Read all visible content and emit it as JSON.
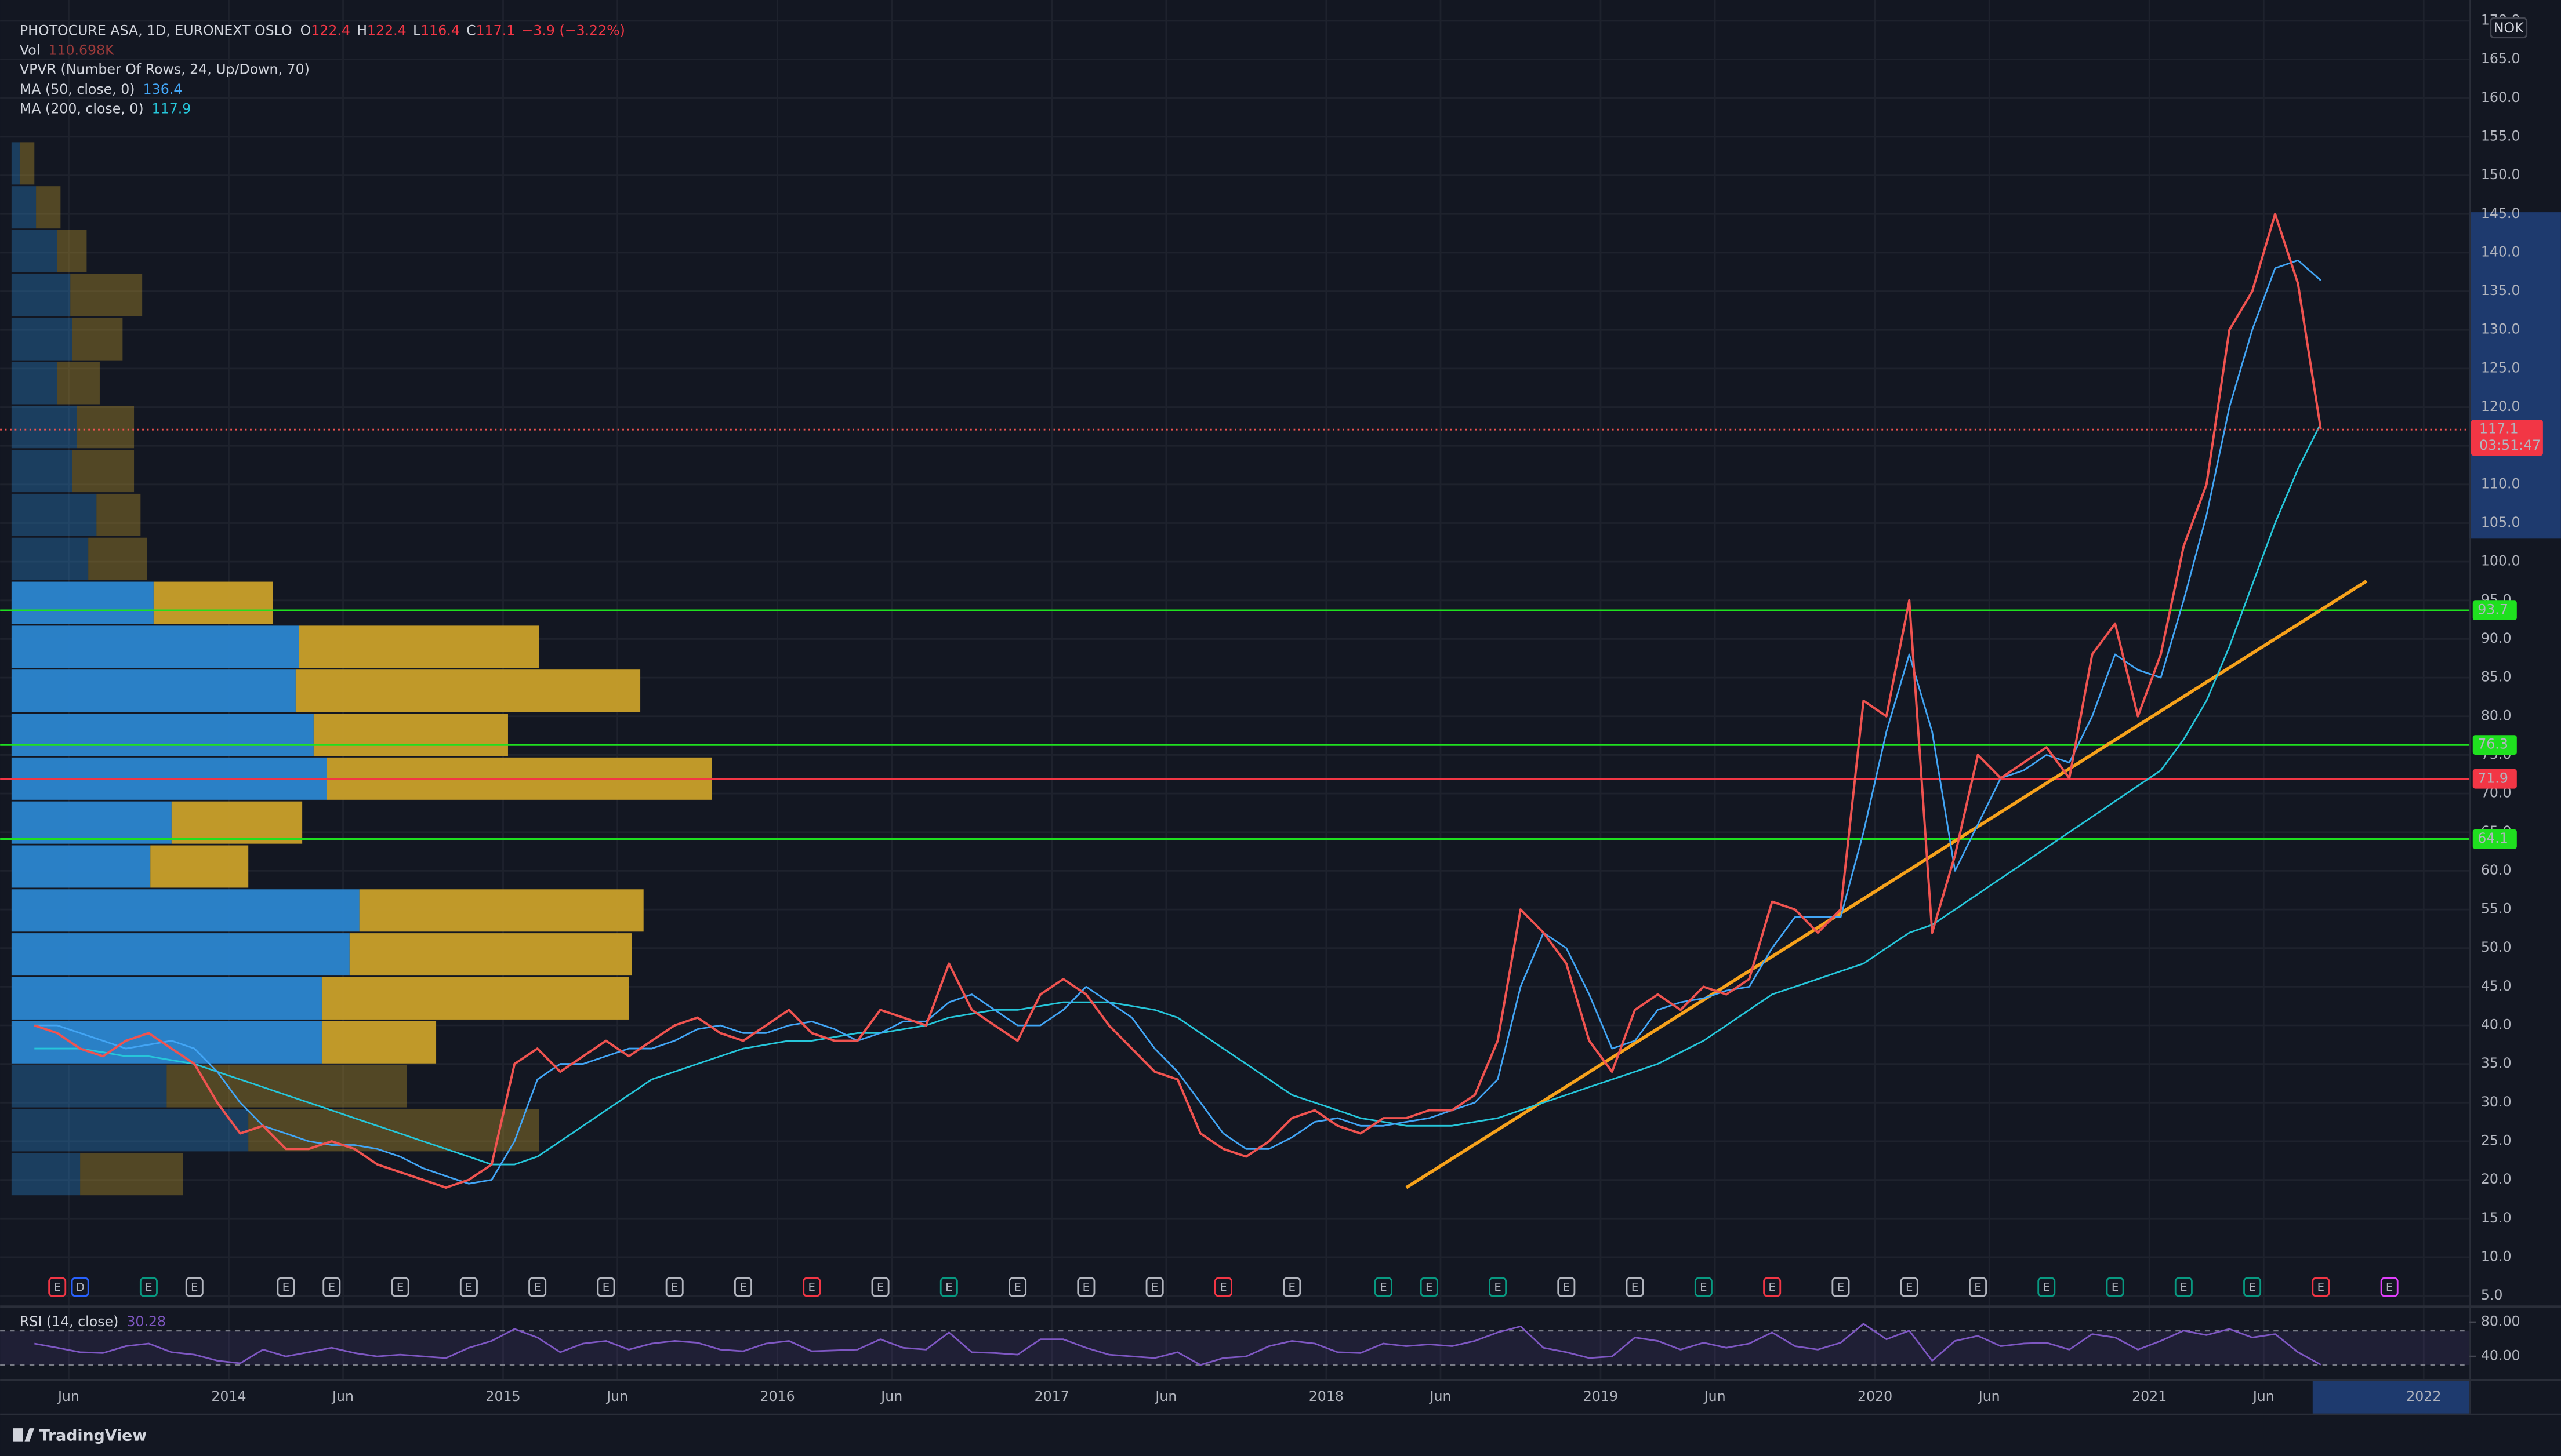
{
  "header": {
    "open_label": "O",
    "open": 122.4,
    "high_label": "H",
    "high": 122.4,
    "low_label": "L",
    "low": 116.4,
    "close_label": "C",
    "change": "−3.9 (−3.22%)",
    "vol_label": "Vol",
    "vol": "110.698K",
    "countdown": "03:51:47",
    "currency": "NOK",
    "brand": "TradingView"
  },
  "chart_data": {
    "type": "line",
    "x": [
      "2013-04",
      "2013-05",
      "2013-06",
      "2013-07",
      "2013-08",
      "2013-09",
      "2013-10",
      "2013-11",
      "2013-12",
      "2014-01",
      "2014-02",
      "2014-03",
      "2014-04",
      "2014-05",
      "2014-06",
      "2014-07",
      "2014-08",
      "2014-09",
      "2014-10",
      "2014-11",
      "2014-12",
      "2015-01",
      "2015-02",
      "2015-03",
      "2015-04",
      "2015-05",
      "2015-06",
      "2015-07",
      "2015-08",
      "2015-09",
      "2015-10",
      "2015-11",
      "2015-12",
      "2016-01",
      "2016-02",
      "2016-03",
      "2016-04",
      "2016-05",
      "2016-06",
      "2016-07",
      "2016-08",
      "2016-09",
      "2016-10",
      "2016-11",
      "2016-12",
      "2017-01",
      "2017-02",
      "2017-03",
      "2017-04",
      "2017-05",
      "2017-06",
      "2017-07",
      "2017-08",
      "2017-09",
      "2017-10",
      "2017-11",
      "2017-12",
      "2018-01",
      "2018-02",
      "2018-03",
      "2018-04",
      "2018-05",
      "2018-06",
      "2018-07",
      "2018-08",
      "2018-09",
      "2018-10",
      "2018-11",
      "2018-12",
      "2019-01",
      "2019-02",
      "2019-03",
      "2019-04",
      "2019-05",
      "2019-06",
      "2019-07",
      "2019-08",
      "2019-09",
      "2019-10",
      "2019-11",
      "2019-12",
      "2020-01",
      "2020-02",
      "2020-03",
      "2020-04",
      "2020-05",
      "2020-06",
      "2020-07",
      "2020-08",
      "2020-09",
      "2020-10",
      "2020-11",
      "2020-12",
      "2021-01",
      "2021-02",
      "2021-03",
      "2021-04",
      "2021-05",
      "2021-06",
      "2021-07",
      "2021-08"
    ],
    "series": [
      {
        "name": "PHOTOCURE ASA, 1D, EURONEXT OSLO",
        "color": "#ef5350",
        "values": [
          40,
          39,
          37,
          36,
          38,
          39,
          37,
          35,
          30,
          26,
          27,
          24,
          24,
          25,
          24,
          22,
          21,
          20,
          19,
          20,
          22,
          35,
          37,
          34,
          36,
          38,
          36,
          38,
          40,
          41,
          39,
          38,
          40,
          42,
          39,
          38,
          38,
          42,
          41,
          40,
          48,
          42,
          40,
          38,
          44,
          46,
          44,
          40,
          37,
          34,
          33,
          26,
          24,
          23,
          25,
          28,
          29,
          27,
          26,
          28,
          28,
          29,
          29,
          31,
          38,
          55,
          52,
          48,
          38,
          34,
          42,
          44,
          42,
          45,
          44,
          46,
          56,
          55,
          52,
          55,
          82,
          80,
          95,
          52,
          62,
          75,
          72,
          74,
          76,
          72,
          88,
          92,
          80,
          88,
          102,
          110,
          130,
          135,
          145,
          136,
          117.1
        ]
      },
      {
        "name": "MA (50, close, 0)",
        "color": "#42a5f5",
        "values": [
          40,
          40,
          39,
          38,
          37,
          37.5,
          38,
          37,
          34,
          30,
          27,
          26,
          25,
          24.5,
          24.5,
          24,
          23,
          21.5,
          20.5,
          19.5,
          20,
          25,
          33,
          35,
          35,
          36,
          37,
          37,
          38,
          39.5,
          40,
          39,
          39,
          40,
          40.5,
          39.5,
          38,
          39,
          40.5,
          40.5,
          43,
          44,
          42,
          40,
          40,
          42,
          45,
          43,
          41,
          37,
          34,
          30,
          26,
          24,
          24,
          25.5,
          27.5,
          28,
          27,
          27,
          27.5,
          28,
          29,
          30,
          33,
          45,
          52,
          50,
          44,
          37,
          38,
          42,
          43,
          43.5,
          44.5,
          45,
          50,
          54,
          54,
          54,
          65,
          78,
          88,
          78,
          60,
          66,
          72,
          73,
          75,
          74,
          80,
          88,
          86,
          85,
          95,
          106,
          120,
          130,
          138,
          139,
          136.4
        ]
      },
      {
        "name": "MA (200, close, 0)",
        "color": "#26c6da",
        "values": [
          37,
          37,
          37,
          36.5,
          36,
          36,
          35.5,
          35,
          34,
          33,
          32,
          31,
          30,
          29,
          28,
          27,
          26,
          25,
          24,
          23,
          22,
          22,
          23,
          25,
          27,
          29,
          31,
          33,
          34,
          35,
          36,
          37,
          37.5,
          38,
          38,
          38.5,
          39,
          39,
          39.5,
          40,
          41,
          41.5,
          42,
          42,
          42.5,
          43,
          43,
          43,
          42.5,
          42,
          41,
          39,
          37,
          35,
          33,
          31,
          30,
          29,
          28,
          27.5,
          27,
          27,
          27,
          27.5,
          28,
          29,
          30,
          31,
          32,
          33,
          34,
          35,
          36.5,
          38,
          40,
          42,
          44,
          45,
          46,
          47,
          48,
          50,
          52,
          53,
          55,
          57,
          59,
          61,
          63,
          65,
          67,
          69,
          71,
          73,
          77,
          82,
          89,
          97,
          105,
          112,
          117.9
        ]
      },
      {
        "name": "RSI (14, close)",
        "color": "#7e57c2",
        "axis": "rsi",
        "values": [
          55,
          50,
          45,
          44,
          52,
          55,
          45,
          42,
          35,
          32,
          48,
          40,
          45,
          50,
          44,
          40,
          42,
          40,
          38,
          50,
          58,
          72,
          62,
          45,
          55,
          58,
          48,
          55,
          58,
          56,
          48,
          46,
          55,
          58,
          46,
          47,
          48,
          60,
          50,
          48,
          68,
          45,
          44,
          42,
          60,
          60,
          50,
          42,
          40,
          38,
          45,
          30,
          38,
          40,
          52,
          58,
          55,
          45,
          44,
          55,
          52,
          54,
          52,
          58,
          68,
          75,
          50,
          45,
          38,
          40,
          62,
          58,
          48,
          56,
          50,
          55,
          68,
          52,
          48,
          56,
          78,
          60,
          70,
          35,
          58,
          64,
          52,
          55,
          56,
          48,
          66,
          62,
          48,
          58,
          70,
          65,
          72,
          62,
          66,
          45,
          30.28
        ]
      }
    ],
    "xlim": [
      "2013-03",
      "2022-03"
    ],
    "xticks": [
      {
        "value": "2013-06",
        "label": "Jun"
      },
      {
        "value": "2014-01",
        "label": "2014"
      },
      {
        "value": "2014-06",
        "label": "Jun"
      },
      {
        "value": "2015-01",
        "label": "2015"
      },
      {
        "value": "2015-06",
        "label": "Jun"
      },
      {
        "value": "2016-01",
        "label": "2016"
      },
      {
        "value": "2016-06",
        "label": "Jun"
      },
      {
        "value": "2017-01",
        "label": "2017"
      },
      {
        "value": "2017-06",
        "label": "Jun"
      },
      {
        "value": "2018-01",
        "label": "2018"
      },
      {
        "value": "2018-06",
        "label": "Jun"
      },
      {
        "value": "2019-01",
        "label": "2019"
      },
      {
        "value": "2019-06",
        "label": "Jun"
      },
      {
        "value": "2020-01",
        "label": "2020"
      },
      {
        "value": "2020-06",
        "label": "Jun"
      },
      {
        "value": "2021-01",
        "label": "2021"
      },
      {
        "value": "2021-06",
        "label": "Jun"
      },
      {
        "value": "2022-01",
        "label": "2022"
      }
    ],
    "ylim": [
      3.7,
      172.7
    ],
    "yticks": [
      {
        "value": 5,
        "label": "5.0"
      },
      {
        "value": 10,
        "label": "10.0"
      },
      {
        "value": 15,
        "label": "15.0"
      },
      {
        "value": 20,
        "label": "20.0"
      },
      {
        "value": 25,
        "label": "25.0"
      },
      {
        "value": 30,
        "label": "30.0"
      },
      {
        "value": 35,
        "label": "35.0"
      },
      {
        "value": 40,
        "label": "40.0"
      },
      {
        "value": 45,
        "label": "45.0"
      },
      {
        "value": 50,
        "label": "50.0"
      },
      {
        "value": 55,
        "label": "55.0"
      },
      {
        "value": 60,
        "label": "60.0"
      },
      {
        "value": 65,
        "label": "65.0"
      },
      {
        "value": 70,
        "label": "70.0"
      },
      {
        "value": 75,
        "label": "75.0"
      },
      {
        "value": 80,
        "label": "80.0"
      },
      {
        "value": 85,
        "label": "85.0"
      },
      {
        "value": 90,
        "label": "90.0"
      },
      {
        "value": 95,
        "label": "95.0"
      },
      {
        "value": 100,
        "label": "100.0"
      },
      {
        "value": 105,
        "label": "105.0"
      },
      {
        "value": 110,
        "label": "110.0"
      },
      {
        "value": 115,
        "label": "115.0"
      },
      {
        "value": 120,
        "label": "120.0"
      },
      {
        "value": 125,
        "label": "125.0"
      },
      {
        "value": 130,
        "label": "130.0"
      },
      {
        "value": 135,
        "label": "135.0"
      },
      {
        "value": 140,
        "label": "140.0"
      },
      {
        "value": 145,
        "label": "145.0"
      },
      {
        "value": 150,
        "label": "150.0"
      },
      {
        "value": 155,
        "label": "155.0"
      },
      {
        "value": 160,
        "label": "160.0"
      },
      {
        "value": 165,
        "label": "165.0"
      },
      {
        "value": 170,
        "label": "170.0"
      }
    ],
    "grid": true,
    "rsi_ylim": [
      13.3,
      99
    ],
    "rsi_yticks": [
      {
        "value": 80,
        "label": "80.00"
      },
      {
        "value": 40,
        "label": "40.00"
      }
    ],
    "rsi_bands": [
      70,
      30
    ],
    "levels": [
      {
        "value": 93.7,
        "color": "#1fe01f"
      },
      {
        "value": 76.3,
        "color": "#1fe01f"
      },
      {
        "value": 71.9,
        "color": "#f23645"
      },
      {
        "value": 64.1,
        "color": "#1fe01f"
      }
    ],
    "trendline": {
      "color": "#f7a21b",
      "x": [
        "2018-04",
        "2021-10"
      ],
      "values": [
        19,
        97.5
      ]
    },
    "vpvr": {
      "name": "VPVR (Number Of Rows, 24, Up/Down, 70)",
      "range": [
        17.9,
        154.4
      ],
      "value_area_percent": 70,
      "up_color": "#2b86d0",
      "down_color": "#c9a02a",
      "up": [
        5,
        15,
        28,
        36,
        37,
        28,
        40,
        37,
        52,
        47,
        87,
        176,
        174,
        185,
        193,
        98,
        85,
        213,
        207,
        190,
        190,
        95,
        145,
        42
      ],
      "down": [
        9,
        15,
        18,
        44,
        31,
        26,
        35,
        38,
        27,
        36,
        73,
        147,
        211,
        119,
        236,
        80,
        60,
        174,
        173,
        188,
        70,
        147,
        178,
        63
      ]
    },
    "events": [
      {
        "label": "E",
        "x": "2013-05",
        "color": "#f23645"
      },
      {
        "label": "D",
        "x": "2013-06",
        "color": "#2962ff"
      },
      {
        "label": "E",
        "x": "2013-09",
        "color": "#089981"
      },
      {
        "label": "E",
        "x": "2013-11",
        "color": "#b2b5be"
      },
      {
        "label": "E",
        "x": "2014-03",
        "color": "#b2b5be"
      },
      {
        "label": "E",
        "x": "2014-05",
        "color": "#b2b5be"
      },
      {
        "label": "E",
        "x": "2014-08",
        "color": "#b2b5be"
      },
      {
        "label": "E",
        "x": "2014-11",
        "color": "#b2b5be"
      },
      {
        "label": "E",
        "x": "2015-02",
        "color": "#b2b5be"
      },
      {
        "label": "E",
        "x": "2015-05",
        "color": "#b2b5be"
      },
      {
        "label": "E",
        "x": "2015-08",
        "color": "#b2b5be"
      },
      {
        "label": "E",
        "x": "2015-11",
        "color": "#b2b5be"
      },
      {
        "label": "E",
        "x": "2016-02",
        "color": "#f23645"
      },
      {
        "label": "E",
        "x": "2016-05",
        "color": "#b2b5be"
      },
      {
        "label": "E",
        "x": "2016-08",
        "color": "#089981"
      },
      {
        "label": "E",
        "x": "2016-11",
        "color": "#b2b5be"
      },
      {
        "label": "E",
        "x": "2017-02",
        "color": "#b2b5be"
      },
      {
        "label": "E",
        "x": "2017-05",
        "color": "#b2b5be"
      },
      {
        "label": "E",
        "x": "2017-08",
        "color": "#f23645"
      },
      {
        "label": "E",
        "x": "2017-11",
        "color": "#b2b5be"
      },
      {
        "label": "E",
        "x": "2018-03",
        "color": "#089981"
      },
      {
        "label": "E",
        "x": "2018-05",
        "color": "#089981"
      },
      {
        "label": "E",
        "x": "2018-08",
        "color": "#089981"
      },
      {
        "label": "E",
        "x": "2018-11",
        "color": "#b2b5be"
      },
      {
        "label": "E",
        "x": "2019-02",
        "color": "#b2b5be"
      },
      {
        "label": "E",
        "x": "2019-05",
        "color": "#089981"
      },
      {
        "label": "E",
        "x": "2019-08",
        "color": "#f23645"
      },
      {
        "label": "E",
        "x": "2019-11",
        "color": "#b2b5be"
      },
      {
        "label": "E",
        "x": "2020-02",
        "color": "#b2b5be"
      },
      {
        "label": "E",
        "x": "2020-05",
        "color": "#b2b5be"
      },
      {
        "label": "E",
        "x": "2020-08",
        "color": "#089981"
      },
      {
        "label": "E",
        "x": "2020-11",
        "color": "#089981"
      },
      {
        "label": "E",
        "x": "2021-02",
        "color": "#089981"
      },
      {
        "label": "E",
        "x": "2021-05",
        "color": "#089981"
      },
      {
        "label": "E",
        "x": "2021-08",
        "color": "#f23645"
      },
      {
        "label": "E",
        "x": "2021-11",
        "color": "#e040fb"
      }
    ]
  }
}
